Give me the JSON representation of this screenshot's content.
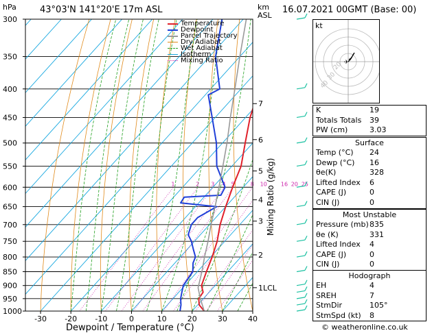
{
  "header": {
    "hpa_unit": "hPa",
    "location": "43°03'N  141°20'E  17m  ASL",
    "km_unit": "km",
    "asl_unit": "ASL",
    "datetime": "16.07.2021  00GMT  (Base: 00)"
  },
  "legend": [
    {
      "label": "Temperature",
      "color": "#e0202a"
    },
    {
      "label": "Dewpoint",
      "color": "#1f3fd8"
    },
    {
      "label": "Parcel Trajectory",
      "color": "#999999"
    },
    {
      "label": "Dry Adiabat",
      "color": "#e08a1a"
    },
    {
      "label": "Wet Adiabat",
      "color": "#22a020"
    },
    {
      "label": "Isotherm",
      "color": "#18a8e0"
    },
    {
      "label": "Mixing Ratio",
      "color": "#cc22aa"
    }
  ],
  "chart_data": {
    "type": "line",
    "title": "",
    "xlabel": "Dewpoint / Temperature (°C)",
    "ylabel": "hPa",
    "y2label": "Mixing Ratio (g/kg)",
    "xlim": [
      -35,
      40
    ],
    "ylim": [
      1000,
      300
    ],
    "xticks": [
      -30,
      -20,
      -10,
      0,
      10,
      20,
      30,
      40
    ],
    "pressure_ticks": [
      300,
      350,
      400,
      450,
      500,
      550,
      600,
      650,
      700,
      750,
      800,
      850,
      900,
      950,
      1000
    ],
    "km_ticks": [
      {
        "p": 908,
        "label": "1LCL"
      },
      {
        "p": 793,
        "label": "2"
      },
      {
        "p": 690,
        "label": "3"
      },
      {
        "p": 632,
        "label": "4"
      },
      {
        "p": 561,
        "label": "5"
      },
      {
        "p": 493,
        "label": "6"
      },
      {
        "p": 425,
        "label": "7"
      }
    ],
    "mixing_ratio_labels": [
      "1",
      "2",
      "3",
      "4",
      "5",
      "8",
      "10",
      "16",
      "20",
      "25"
    ],
    "series": [
      {
        "name": "Temperature",
        "color": "#e0202a",
        "points": [
          [
            1000,
            24
          ],
          [
            975,
            20.5
          ],
          [
            950,
            18.5
          ],
          [
            925,
            18
          ],
          [
            900,
            15.5
          ],
          [
            850,
            13
          ],
          [
            800,
            10.5
          ],
          [
            750,
            7.5
          ],
          [
            700,
            3.5
          ],
          [
            650,
            0
          ],
          [
            600,
            -3.5
          ],
          [
            550,
            -7
          ],
          [
            500,
            -12.5
          ],
          [
            450,
            -18.5
          ],
          [
            400,
            -24
          ],
          [
            350,
            -32
          ],
          [
            300,
            -40
          ]
        ]
      },
      {
        "name": "Dewpoint",
        "color": "#1f3fd8",
        "points": [
          [
            1000,
            16
          ],
          [
            975,
            14.5
          ],
          [
            950,
            12.5
          ],
          [
            925,
            11
          ],
          [
            900,
            9.5
          ],
          [
            850,
            8.5
          ],
          [
            820,
            6
          ],
          [
            800,
            5
          ],
          [
            775,
            2
          ],
          [
            750,
            -1
          ],
          [
            730,
            -4
          ],
          [
            700,
            -6
          ],
          [
            680,
            -6
          ],
          [
            660,
            -4
          ],
          [
            650,
            -3
          ],
          [
            640,
            -16
          ],
          [
            625,
            -16.5
          ],
          [
            620,
            -5
          ],
          [
            600,
            -6
          ],
          [
            550,
            -15
          ],
          [
            500,
            -22
          ],
          [
            450,
            -31
          ],
          [
            410,
            -39
          ],
          [
            400,
            -37
          ],
          [
            350,
            -48
          ],
          [
            300,
            -57
          ]
        ]
      },
      {
        "name": "Parcel Trajectory",
        "color": "#999999",
        "points": [
          [
            1000,
            24
          ],
          [
            950,
            19
          ],
          [
            908,
            15
          ],
          [
            850,
            11.5
          ],
          [
            800,
            8
          ],
          [
            750,
            4.5
          ],
          [
            700,
            0.5
          ],
          [
            650,
            -3.5
          ],
          [
            600,
            -8
          ],
          [
            550,
            -13
          ],
          [
            500,
            -18.5
          ],
          [
            450,
            -25
          ],
          [
            400,
            -32
          ],
          [
            350,
            -40
          ],
          [
            300,
            -49
          ]
        ]
      }
    ]
  },
  "wind_barbs_color": "#18c0a0",
  "hodograph": {
    "unit_label": "kt",
    "ring_labels": [
      "20",
      "30",
      "40"
    ]
  },
  "indices": {
    "top": [
      {
        "key": "K",
        "value": "19"
      },
      {
        "key": "Totals Totals",
        "value": "39"
      },
      {
        "key": "PW (cm)",
        "value": "3.03"
      }
    ],
    "surface_title": "Surface",
    "surface": [
      {
        "key": "Temp (°C)",
        "value": "24"
      },
      {
        "key": "Dewp (°C)",
        "value": "16"
      },
      {
        "key": "θe(K)",
        "value": "328"
      },
      {
        "key": "Lifted Index",
        "value": "6"
      },
      {
        "key": "CAPE (J)",
        "value": "0"
      },
      {
        "key": "CIN (J)",
        "value": "0"
      }
    ],
    "unstable_title": "Most Unstable",
    "unstable": [
      {
        "key": "Pressure (mb)",
        "value": "835"
      },
      {
        "key": "θe (K)",
        "value": "331"
      },
      {
        "key": "Lifted Index",
        "value": "4"
      },
      {
        "key": "CAPE (J)",
        "value": "0"
      },
      {
        "key": "CIN (J)",
        "value": "0"
      }
    ],
    "hodograph_title": "Hodograph",
    "hodo_rows": [
      {
        "key": "EH",
        "value": "4"
      },
      {
        "key": "SREH",
        "value": "7"
      },
      {
        "key": "StmDir",
        "value": "105°"
      },
      {
        "key": "StmSpd (kt)",
        "value": "8"
      }
    ]
  },
  "footer": {
    "copyright": "© weatheronline.co.uk"
  }
}
